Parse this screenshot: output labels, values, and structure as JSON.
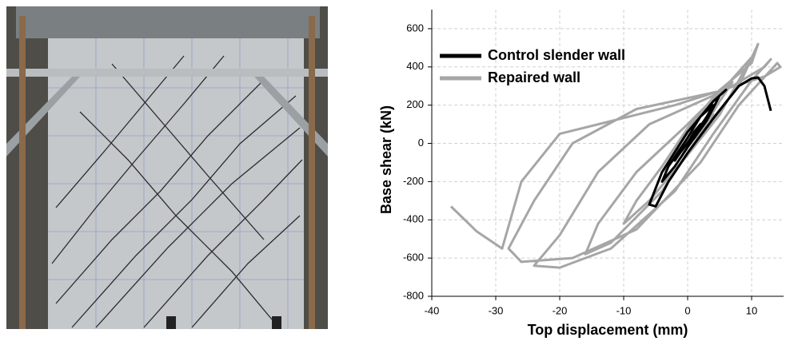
{
  "chart_data": {
    "type": "line",
    "x_label": "Top displacement (mm)",
    "y_label": "Base shear (kN)",
    "xlim": [
      -40,
      15
    ],
    "xticks": [
      -40,
      -30,
      -20,
      -10,
      0,
      10
    ],
    "ylim": [
      -800,
      700
    ],
    "yticks": [
      -800,
      -600,
      -400,
      -200,
      0,
      200,
      400,
      600
    ],
    "grid": true,
    "legend": "upper-left",
    "series": [
      {
        "name": "Control slender wall",
        "color": "#000000",
        "x": [
          0,
          1,
          2,
          1,
          -1,
          -2,
          -1,
          1,
          3,
          4,
          2,
          0,
          -3,
          -4,
          -2,
          0,
          3,
          5,
          6,
          4,
          0,
          -4,
          -6,
          -5,
          -3,
          0,
          4,
          8,
          10,
          11,
          12,
          13
        ],
        "values": [
          0,
          60,
          100,
          50,
          -40,
          -90,
          -40,
          40,
          140,
          200,
          140,
          30,
          -120,
          -200,
          -120,
          -20,
          120,
          250,
          280,
          220,
          60,
          -150,
          -320,
          -330,
          -200,
          -50,
          130,
          300,
          340,
          345,
          300,
          170
        ]
      },
      {
        "name": "Repaired wall",
        "color": "#a6a6a6",
        "x": [
          0,
          2,
          4,
          2,
          -2,
          -4,
          -2,
          2,
          5,
          7,
          4,
          0,
          -4,
          -8,
          -10,
          -6,
          0,
          5,
          8,
          10,
          6,
          0,
          -8,
          -14,
          -16,
          -12,
          -4,
          2,
          8,
          11,
          10,
          4,
          -6,
          -14,
          -20,
          -24,
          -20,
          -12,
          -2,
          4,
          10,
          13,
          12,
          6,
          -8,
          -18,
          -24,
          -28,
          -26,
          -18,
          -8,
          2,
          8,
          14,
          14.5,
          12,
          -2,
          -20,
          -26,
          -29,
          -33,
          -37
        ],
        "values": [
          0,
          80,
          150,
          100,
          -60,
          -150,
          -80,
          60,
          220,
          320,
          240,
          80,
          -120,
          -300,
          -420,
          -300,
          -60,
          150,
          330,
          450,
          300,
          100,
          -150,
          -420,
          -580,
          -520,
          -250,
          50,
          300,
          520,
          420,
          250,
          100,
          -150,
          -480,
          -640,
          -650,
          -550,
          -250,
          50,
          330,
          440,
          400,
          280,
          180,
          0,
          -300,
          -550,
          -620,
          -600,
          -450,
          -100,
          200,
          420,
          400,
          350,
          200,
          50,
          -200,
          -550,
          -460,
          -330
        ]
      }
    ]
  }
}
